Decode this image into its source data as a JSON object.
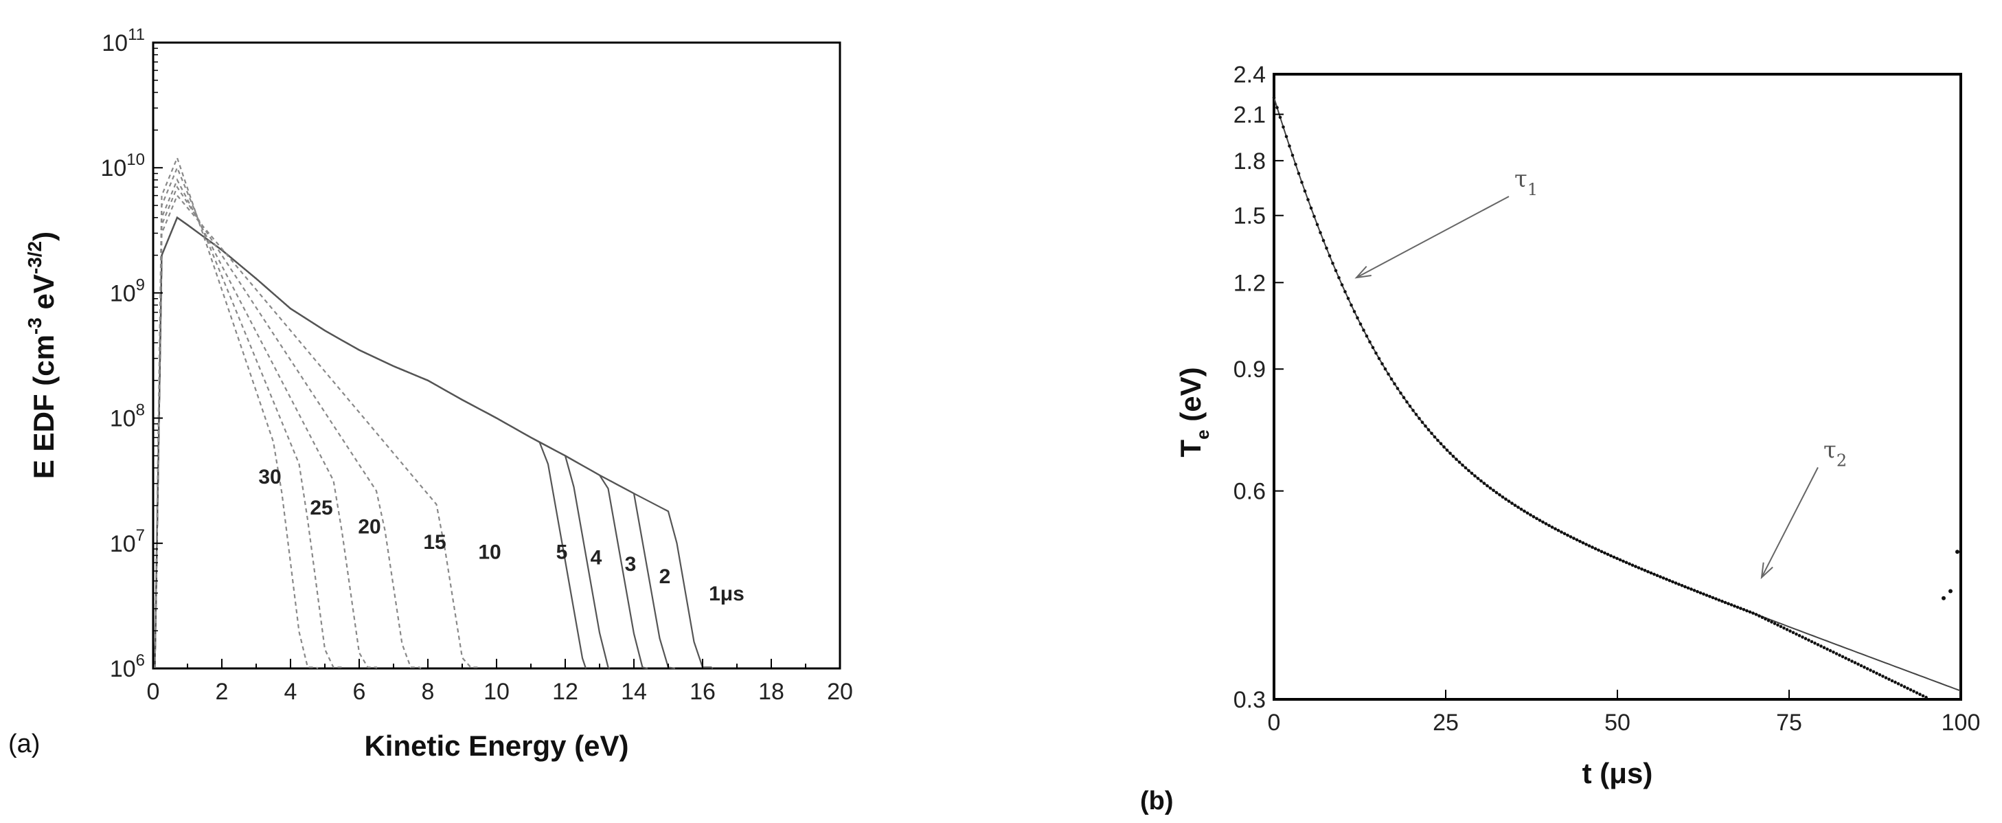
{
  "chart_data": [
    {
      "panel_label": "(a)",
      "type": "line",
      "xlabel": "Kinetic Energy (eV)",
      "ylabel": "E EDF (cm⁻³ eV⁻³ᐟ²)",
      "ylabel_parts": {
        "main": "E EDF (cm",
        "sup1": "-3",
        "mid": " eV",
        "sup2": "-3/2",
        "end": ")"
      },
      "xlim": [
        0,
        20
      ],
      "ylim": [
        1000000,
        100000000000
      ],
      "yscale": "log",
      "x_ticks": [
        "0",
        "2",
        "4",
        "6",
        "8",
        "10",
        "12",
        "14",
        "16",
        "18",
        "20"
      ],
      "y_ticks": [
        {
          "base": "10",
          "exp": "6",
          "value": 1000000
        },
        {
          "base": "10",
          "exp": "7",
          "value": 10000000
        },
        {
          "base": "10",
          "exp": "8",
          "value": 100000000
        },
        {
          "base": "10",
          "exp": "9",
          "value": 1000000000
        },
        {
          "base": "10",
          "exp": "10",
          "value": 10000000000
        },
        {
          "base": "10",
          "exp": "11",
          "value": 100000000000
        }
      ],
      "series": [
        {
          "name": "1μs",
          "cutoff": 16.3,
          "peak": 4000000000,
          "tail": 30000000
        },
        {
          "name": "2",
          "cutoff": 15.2,
          "peak": 4000000000,
          "tail": 20000000
        },
        {
          "name": "3",
          "cutoff": 14.4,
          "peak": 4000000000,
          "tail": 15000000
        },
        {
          "name": "4",
          "cutoff": 13.3,
          "peak": 4000000000,
          "tail": 12000000
        },
        {
          "name": "5",
          "cutoff": 12.6,
          "peak": 4000000000,
          "tail": 10000000
        },
        {
          "name": "10",
          "cutoff": 9.5,
          "peak": 6000000000,
          "tail": 10000000
        },
        {
          "name": "15",
          "cutoff": 7.8,
          "peak": 7000000000,
          "tail": 10000000
        },
        {
          "name": "20",
          "cutoff": 6.5,
          "peak": 8000000000,
          "tail": 10000000
        },
        {
          "name": "25",
          "cutoff": 5.5,
          "peak": 10000000000,
          "tail": 10000000
        },
        {
          "name": "30",
          "cutoff": 4.8,
          "peak": 12000000000,
          "tail": 10000000
        }
      ],
      "curve_labels": [
        {
          "text": "30",
          "x": 3.4,
          "y": 30000000
        },
        {
          "text": "25",
          "x": 4.9,
          "y": 17000000
        },
        {
          "text": "20",
          "x": 6.3,
          "y": 12000000
        },
        {
          "text": "15",
          "x": 8.2,
          "y": 9000000
        },
        {
          "text": "10",
          "x": 9.8,
          "y": 7500000
        },
        {
          "text": "5",
          "x": 11.9,
          "y": 7500000
        },
        {
          "text": "4",
          "x": 12.9,
          "y": 6800000
        },
        {
          "text": "3",
          "x": 13.9,
          "y": 6000000
        },
        {
          "text": "2",
          "x": 14.9,
          "y": 4800000
        },
        {
          "text": "1μs",
          "x": 16.7,
          "y": 3500000
        }
      ]
    },
    {
      "panel_label": "(b)",
      "type": "scatter",
      "xlabel": "t (μs)",
      "ylabel_main": "T",
      "ylabel_sub": "e",
      "ylabel_end": " (eV)",
      "xlim": [
        0,
        100
      ],
      "ylim": [
        0.3,
        2.4
      ],
      "yscale": "log",
      "x_ticks": [
        "0",
        "25",
        "50",
        "75",
        "100"
      ],
      "y_ticks": [
        "0.3",
        "0.6",
        "0.9",
        "1.2",
        "1.5",
        "1.8",
        "2.1",
        "2.4"
      ],
      "fit_tau1": {
        "amplitude": 1.5,
        "tau": 9.5
      },
      "fit_tau2": {
        "amplitude": 0.72,
        "tau": 118
      },
      "annotations": [
        {
          "main": "τ",
          "sub": "1",
          "x": 35,
          "y": 1.65,
          "arrow_to_x": 12,
          "arrow_to_y": 1.22
        },
        {
          "main": "τ",
          "sub": "2",
          "x": 80,
          "y": 0.67,
          "arrow_to_x": 71,
          "arrow_to_y": 0.45
        }
      ],
      "outlier_points": [
        {
          "x": 97.5,
          "y": 0.42
        },
        {
          "x": 98.5,
          "y": 0.43
        },
        {
          "x": 99.5,
          "y": 0.49
        }
      ]
    }
  ]
}
